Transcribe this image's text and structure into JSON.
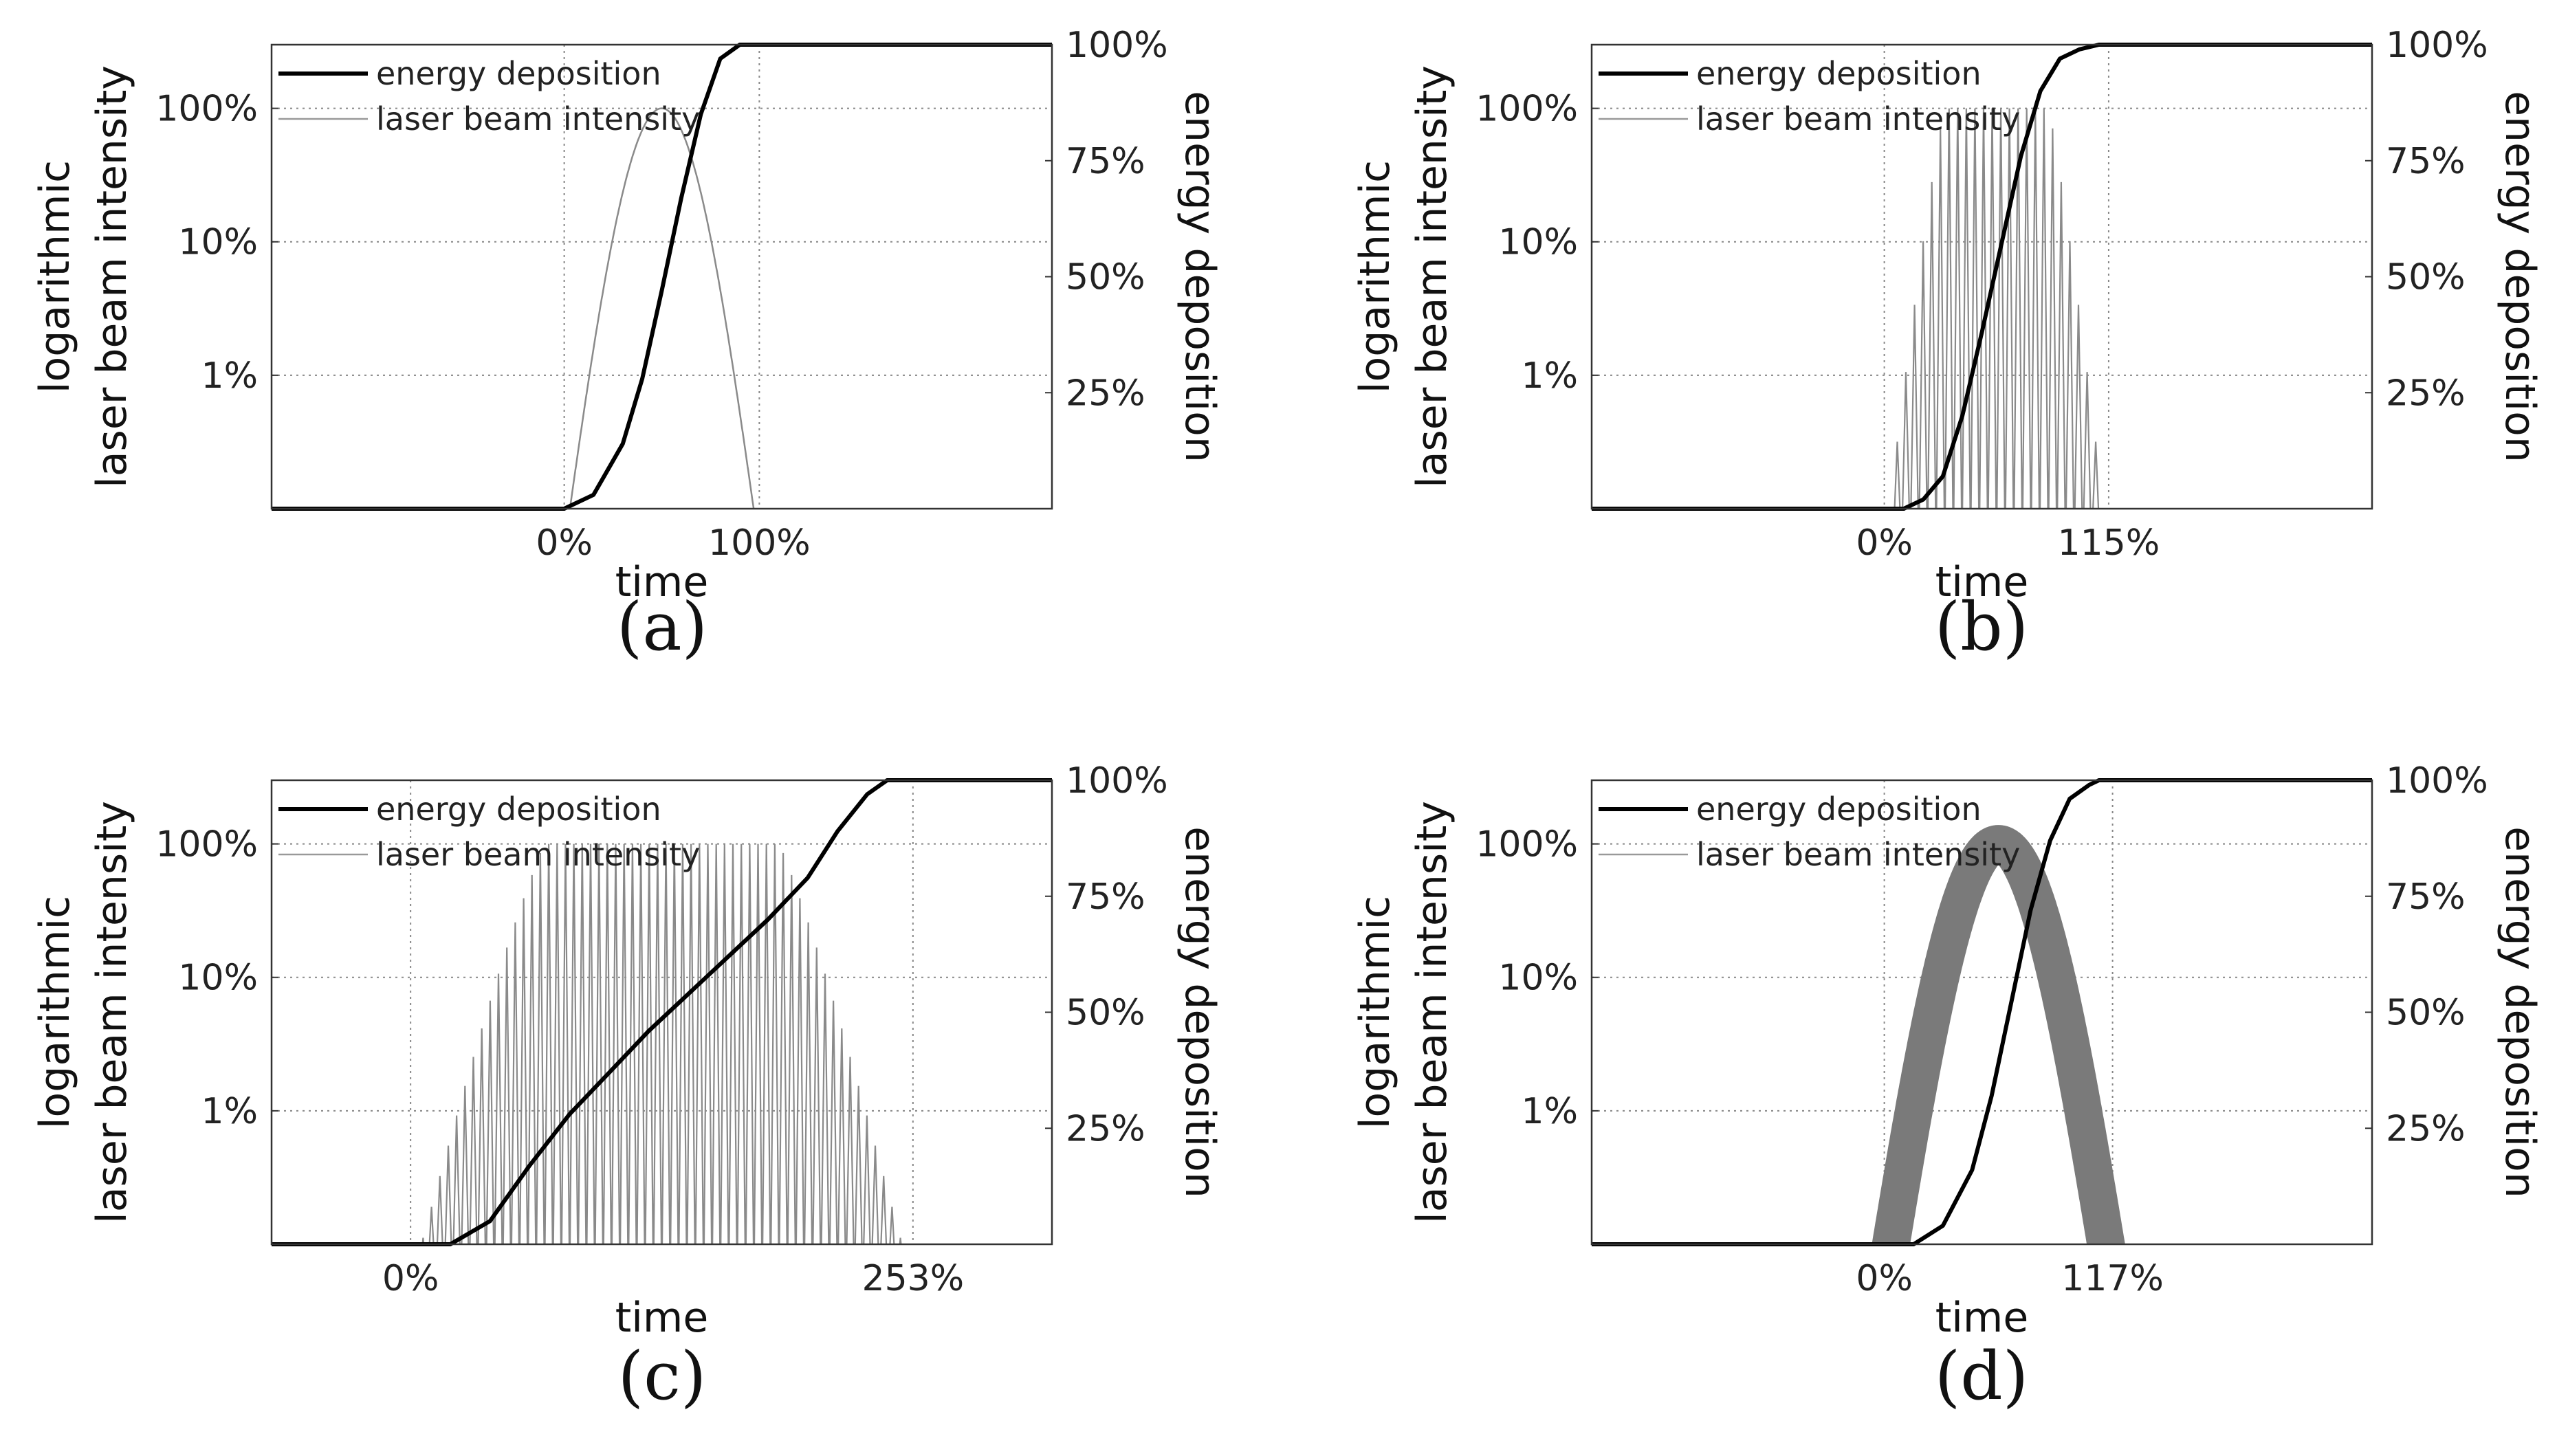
{
  "chart_data": [
    {
      "type": "line",
      "id": "a",
      "caption": "(a)",
      "xlabel": "time",
      "ylabel_left_lines": [
        "logarithmic",
        "laser beam intensity"
      ],
      "ylabel_right": "energy deposition",
      "x_ticks": [
        "0%",
        "100%"
      ],
      "left_ticks": [
        "100%",
        "10%",
        "1%"
      ],
      "right_ticks": [
        "100%",
        "75%",
        "50%",
        "25%"
      ],
      "legend": [
        "energy deposition",
        "laser beam intensity"
      ],
      "pulse_mode": "smooth",
      "pulse_start": 0,
      "pulse_end": 100,
      "x_range": [
        -150,
        250
      ],
      "left_log_range_pct": [
        0.1,
        300
      ],
      "right_range_pct": [
        0,
        100
      ],
      "series": [
        {
          "name": "energy deposition",
          "x": [
            -150,
            0,
            15,
            30,
            40,
            50,
            60,
            70,
            80,
            90,
            100,
            250
          ],
          "y": [
            0,
            0,
            3,
            14,
            28,
            47,
            67,
            85,
            97,
            100,
            100,
            100
          ]
        }
      ]
    },
    {
      "type": "line",
      "id": "b",
      "caption": "(b)",
      "xlabel": "time",
      "ylabel_left_lines": [
        "logarithmic",
        "laser beam intensity"
      ],
      "ylabel_right": "energy deposition",
      "x_ticks": [
        "0%",
        "115%"
      ],
      "left_ticks": [
        "100%",
        "10%",
        "1%"
      ],
      "right_ticks": [
        "100%",
        "75%",
        "50%",
        "25%"
      ],
      "legend": [
        "energy deposition",
        "laser beam intensity"
      ],
      "pulse_mode": "spiky",
      "pulse_start": 0,
      "pulse_end": 115,
      "pulse_count": 26,
      "x_range": [
        -150,
        250
      ],
      "left_log_range_pct": [
        0.1,
        300
      ],
      "right_range_pct": [
        0,
        100
      ],
      "series": [
        {
          "name": "energy deposition",
          "x": [
            -150,
            10,
            20,
            30,
            40,
            50,
            60,
            70,
            80,
            90,
            100,
            110,
            250
          ],
          "y": [
            0,
            0,
            2,
            7,
            20,
            38,
            57,
            76,
            90,
            97,
            99,
            100,
            100
          ]
        }
      ]
    },
    {
      "type": "line",
      "id": "c",
      "caption": "(c)",
      "xlabel": "time",
      "ylabel_left_lines": [
        "logarithmic",
        "laser beam intensity"
      ],
      "ylabel_right": "energy deposition",
      "x_ticks": [
        "0%",
        "253%"
      ],
      "left_ticks": [
        "100%",
        "10%",
        "1%"
      ],
      "right_ticks": [
        "100%",
        "75%",
        "50%",
        "25%"
      ],
      "legend": [
        "energy deposition",
        "laser beam intensity"
      ],
      "pulse_mode": "spiky",
      "pulse_start": 0,
      "pulse_end": 253,
      "pulse_count": 60,
      "x_range": [
        -70,
        323
      ],
      "left_log_range_pct": [
        0.1,
        300
      ],
      "right_range_pct": [
        0,
        100
      ],
      "series": [
        {
          "name": "energy deposition",
          "x": [
            -70,
            20,
            40,
            60,
            80,
            100,
            120,
            140,
            160,
            180,
            200,
            215,
            230,
            240,
            323
          ],
          "y": [
            0,
            0,
            5,
            17,
            28,
            37,
            46,
            54,
            62,
            70,
            79,
            89,
            97,
            100,
            100
          ]
        }
      ]
    },
    {
      "type": "line",
      "id": "d",
      "caption": "(d)",
      "xlabel": "time",
      "ylabel_left_lines": [
        "logarithmic",
        "laser beam intensity"
      ],
      "ylabel_right": "energy deposition",
      "x_ticks": [
        "0%",
        "117%"
      ],
      "left_ticks": [
        "100%",
        "10%",
        "1%"
      ],
      "right_ticks": [
        "100%",
        "75%",
        "50%",
        "25%"
      ],
      "legend": [
        "energy deposition",
        "laser beam intensity"
      ],
      "pulse_mode": "dense",
      "pulse_start": 0,
      "pulse_end": 117,
      "x_range": [
        -150,
        250
      ],
      "left_log_range_pct": [
        0.1,
        300
      ],
      "right_range_pct": [
        0,
        100
      ],
      "series": [
        {
          "name": "energy deposition",
          "x": [
            -150,
            15,
            30,
            45,
            55,
            65,
            75,
            85,
            95,
            105,
            110,
            250
          ],
          "y": [
            0,
            0,
            4,
            16,
            32,
            52,
            72,
            87,
            96,
            99,
            100,
            100
          ]
        }
      ]
    }
  ]
}
